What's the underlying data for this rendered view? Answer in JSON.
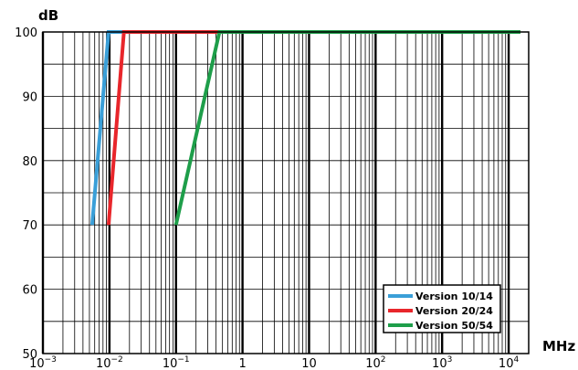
{
  "chart_data": {
    "type": "line",
    "title": "",
    "xlabel": "MHz",
    "ylabel": "dB",
    "x_scale": "log",
    "xlim": [
      0.001,
      20000
    ],
    "ylim": [
      50,
      100
    ],
    "grid": true,
    "legend_position": "bottom-right",
    "y_ticks": [
      {
        "value": 100,
        "label": "100"
      },
      {
        "value": 90,
        "label": "90"
      },
      {
        "value": 80,
        "label": "80"
      },
      {
        "value": 70,
        "label": "70"
      },
      {
        "value": 60,
        "label": "60"
      },
      {
        "value": 50,
        "label": "50"
      }
    ],
    "x_ticks": [
      {
        "value": 0.001,
        "base": "10",
        "exp": "−3"
      },
      {
        "value": 0.01,
        "base": "10",
        "exp": "−2"
      },
      {
        "value": 0.1,
        "base": "10",
        "exp": "−1"
      },
      {
        "value": 1,
        "base": "1",
        "exp": ""
      },
      {
        "value": 10,
        "base": "10",
        "exp": ""
      },
      {
        "value": 100,
        "base": "10",
        "exp": "2"
      },
      {
        "value": 1000,
        "base": "10",
        "exp": "3"
      },
      {
        "value": 10000,
        "base": "10",
        "exp": "4"
      }
    ],
    "series": [
      {
        "name": "Version 10/14",
        "color": "#3a9fd8",
        "points": [
          [
            0.0055,
            70
          ],
          [
            0.0097,
            100
          ],
          [
            15000,
            100
          ]
        ]
      },
      {
        "name": "Version 20/24",
        "color": "#e8262b",
        "points": [
          [
            0.0097,
            70
          ],
          [
            0.0165,
            100
          ],
          [
            15000,
            100
          ]
        ]
      },
      {
        "name": "Version 50/54",
        "color": "#1e9e4a",
        "points": [
          [
            0.1,
            70
          ],
          [
            0.45,
            100
          ],
          [
            15000,
            100
          ]
        ]
      }
    ]
  }
}
